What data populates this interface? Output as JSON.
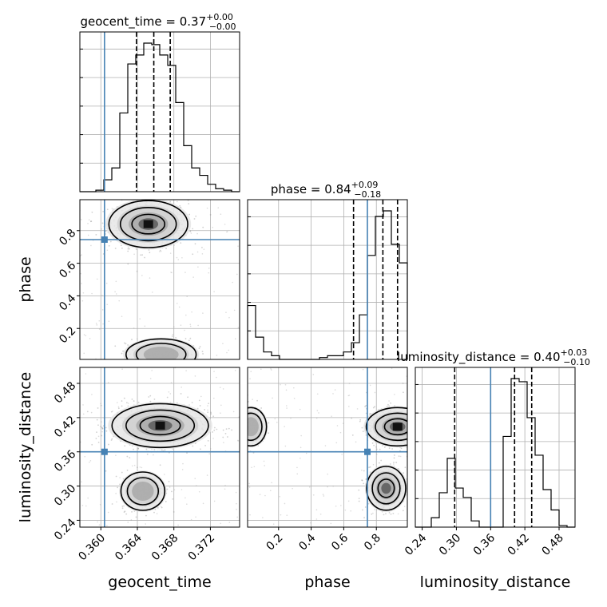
{
  "chart_data": {
    "type": "corner",
    "parameters": [
      "geocent_time",
      "phase",
      "luminosity_distance"
    ],
    "truths": {
      "geocent_time": 0.3604,
      "phase": 0.745,
      "luminosity_distance": 0.36
    },
    "ranges": {
      "geocent_time": [
        0.3577,
        0.3752
      ],
      "phase": [
        0.01,
        0.99
      ],
      "luminosity_distance": [
        0.228,
        0.508
      ]
    },
    "ticks": {
      "geocent_time": {
        "values": [
          0.36,
          0.364,
          0.368,
          0.372
        ],
        "labels": [
          "0.360",
          "0.364",
          "0.368",
          "0.372"
        ]
      },
      "phase": {
        "values": [
          0.2,
          0.4,
          0.6,
          0.8
        ],
        "labels": [
          "0.2",
          "0.4",
          "0.6",
          "0.8"
        ]
      },
      "luminosity_distance": {
        "values": [
          0.24,
          0.3,
          0.36,
          0.42,
          0.48
        ],
        "labels": [
          "0.24",
          "0.30",
          "0.36",
          "0.42",
          "0.48"
        ]
      }
    },
    "titles": {
      "geocent_time": {
        "main": "geocent_time = 0.37",
        "up": "+0.00",
        "down": "−0.00"
      },
      "phase": {
        "main": "phase = 0.84",
        "up": "+0.09",
        "down": "−0.18"
      },
      "luminosity_distance": {
        "main": "luminosity_distance = 0.40",
        "up": "+0.03",
        "down": "−0.10"
      }
    },
    "quantiles": {
      "geocent_time": [
        0.3639,
        0.3658,
        0.3676
      ],
      "phase": [
        0.66,
        0.84,
        0.93
      ],
      "luminosity_distance": [
        0.297,
        0.402,
        0.432
      ]
    },
    "histograms": {
      "geocent_time": {
        "edges_range": [
          0.3577,
          0.3752
        ],
        "counts": [
          0,
          0,
          1,
          8,
          16,
          53,
          86,
          92,
          100,
          99,
          92,
          85,
          60,
          31,
          16,
          11,
          5,
          2,
          1,
          0
        ]
      },
      "phase": {
        "edges_range": [
          0.01,
          0.99
        ],
        "counts": [
          29,
          12,
          4,
          2,
          0,
          0,
          0,
          0,
          0,
          1,
          2,
          2,
          4,
          9,
          24,
          56,
          77,
          80,
          62,
          52
        ]
      },
      "luminosity_distance": {
        "edges_range": [
          0.228,
          0.508
        ],
        "counts": [
          0,
          0,
          6,
          22,
          44,
          25,
          19,
          4,
          0,
          0,
          0,
          58,
          95,
          93,
          70,
          46,
          24,
          11,
          1,
          0
        ]
      }
    },
    "modes_2d": {
      "geocent_time__phase": [
        {
          "x": 0.3652,
          "y": 0.84,
          "sx": 0.0018,
          "sy": 0.06,
          "w": 1.0
        },
        {
          "x": 0.3666,
          "y": 0.04,
          "sx": 0.0016,
          "sy": 0.04,
          "w": 0.35
        }
      ],
      "geocent_time__luminosity_distance": [
        {
          "x": 0.3665,
          "y": 0.406,
          "sx": 0.0022,
          "sy": 0.016,
          "w": 1.0
        },
        {
          "x": 0.3646,
          "y": 0.291,
          "sx": 0.001,
          "sy": 0.014,
          "w": 0.45
        }
      ],
      "phase__luminosity_distance": [
        {
          "x": 0.93,
          "y": 0.404,
          "sx": 0.08,
          "sy": 0.014,
          "w": 1.0
        },
        {
          "x": 0.03,
          "y": 0.404,
          "sx": 0.04,
          "sy": 0.014,
          "w": 0.3
        },
        {
          "x": 0.86,
          "y": 0.296,
          "sx": 0.05,
          "sy": 0.016,
          "w": 0.55
        }
      ]
    },
    "colors": {
      "truth": "#4682b4",
      "hist": "#000000",
      "scatter": "#9a9a9a",
      "grid": "#b0b0b0"
    },
    "xlabels": [
      "geocent_time",
      "phase",
      "luminosity_distance"
    ],
    "ylabels": [
      "",
      "phase",
      "luminosity_distance"
    ]
  }
}
